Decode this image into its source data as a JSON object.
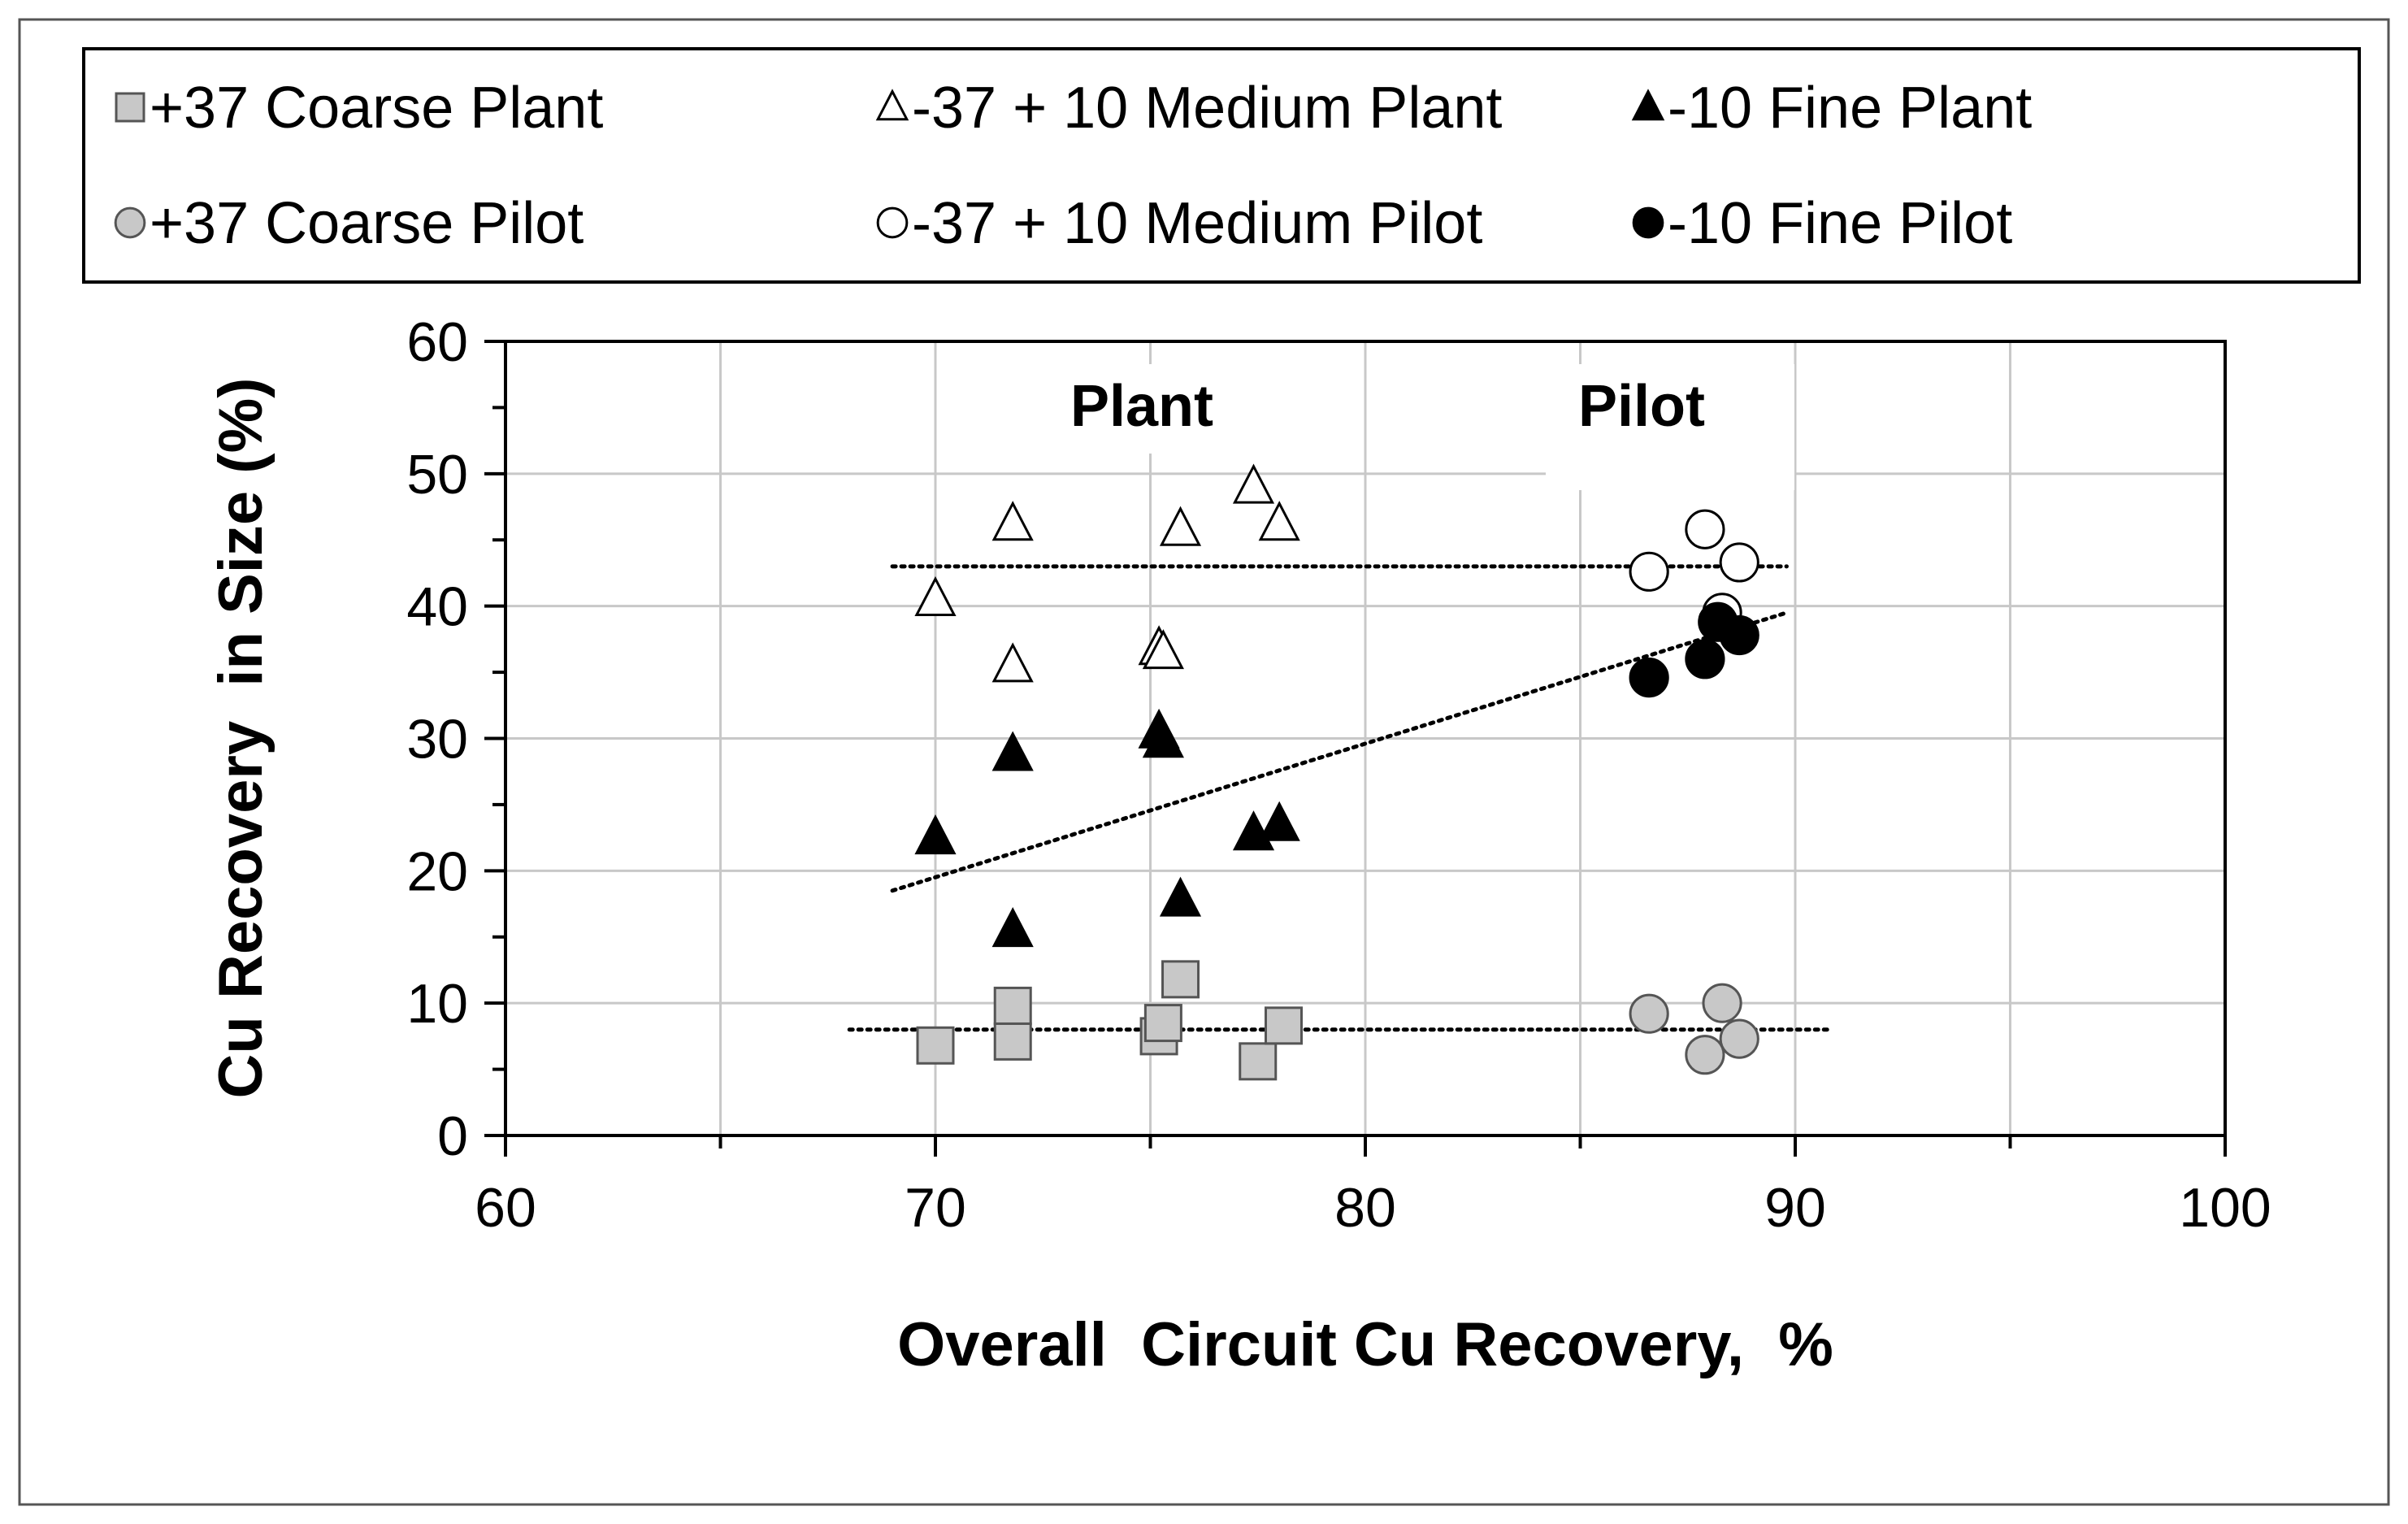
{
  "chart_data": {
    "type": "scatter",
    "title": "",
    "xlabel": "Overall  Circuit Cu Recovery,  %",
    "ylabel": "Cu Recovery  in Size (%)",
    "xlim": [
      60,
      100
    ],
    "ylim": [
      0,
      60
    ],
    "x_major_ticks": [
      60,
      70,
      80,
      90,
      100
    ],
    "x_grid": [
      65,
      70,
      75,
      80,
      85,
      90,
      95
    ],
    "y_major_ticks": [
      0,
      10,
      20,
      30,
      40,
      50,
      60
    ],
    "y_grid": [
      10,
      20,
      30,
      40,
      50
    ],
    "grid": true,
    "legend_position": "top",
    "annotations": [
      {
        "text": "Plant",
        "x": 74.8,
        "y": 55
      },
      {
        "text": "Pilot",
        "x": 86.4,
        "y": 55
      }
    ],
    "series": [
      {
        "name": "+37 Coarse Plant",
        "marker": "square",
        "fill": "#c8c8c8",
        "stroke": "#555555",
        "points": [
          [
            70,
            6.8
          ],
          [
            71.8,
            7.1
          ],
          [
            71.8,
            9.8
          ],
          [
            75.2,
            7.5
          ],
          [
            75.3,
            8.5
          ],
          [
            75.7,
            11.8
          ],
          [
            77.5,
            5.6
          ],
          [
            78.1,
            8.3
          ]
        ]
      },
      {
        "name": "-37 + 10 Medium Plant",
        "marker": "triangle-open",
        "fill": "#ffffff",
        "stroke": "#000000",
        "points": [
          [
            70,
            40.5
          ],
          [
            71.8,
            46.2
          ],
          [
            71.8,
            35.5
          ],
          [
            75.2,
            36.8
          ],
          [
            75.3,
            36.5
          ],
          [
            75.7,
            45.8
          ],
          [
            77.4,
            49
          ],
          [
            78,
            46.2
          ]
        ]
      },
      {
        "name": "-10 Fine Plant",
        "marker": "triangle-filled",
        "fill": "#000000",
        "stroke": "#000000",
        "points": [
          [
            70,
            22.5
          ],
          [
            71.8,
            28.8
          ],
          [
            71.8,
            15.5
          ],
          [
            75.2,
            30.5
          ],
          [
            75.3,
            29.8
          ],
          [
            75.7,
            17.8
          ],
          [
            77.4,
            22.8
          ],
          [
            78,
            23.5
          ]
        ]
      },
      {
        "name": "+37 Coarse Pilot",
        "marker": "circle",
        "fill": "#c8c8c8",
        "stroke": "#555555",
        "points": [
          [
            86.6,
            9.2
          ],
          [
            87.9,
            6.1
          ],
          [
            88.3,
            10
          ],
          [
            88.7,
            7.3
          ]
        ]
      },
      {
        "name": "-37 + 10 Medium Pilot",
        "marker": "circle-open",
        "fill": "#ffffff",
        "stroke": "#000000",
        "points": [
          [
            86.6,
            42.6
          ],
          [
            87.9,
            45.8
          ],
          [
            88.3,
            39.5
          ],
          [
            88.7,
            43.3
          ]
        ]
      },
      {
        "name": "-10 Fine Pilot",
        "marker": "circle-filled",
        "fill": "#000000",
        "stroke": "#000000",
        "points": [
          [
            86.6,
            34.6
          ],
          [
            87.9,
            36
          ],
          [
            88.2,
            38.8
          ],
          [
            88.7,
            37.8
          ]
        ]
      }
    ],
    "trend_lines": [
      {
        "name": "coarse-trend",
        "x1": 68,
        "y1": 8,
        "x2": 90.8,
        "y2": 8
      },
      {
        "name": "medium-trend",
        "x1": 69,
        "y1": 43,
        "x2": 89.8,
        "y2": 43
      },
      {
        "name": "fine-trend",
        "x1": 69,
        "y1": 18.5,
        "x2": 89.8,
        "y2": 39.5
      }
    ]
  }
}
